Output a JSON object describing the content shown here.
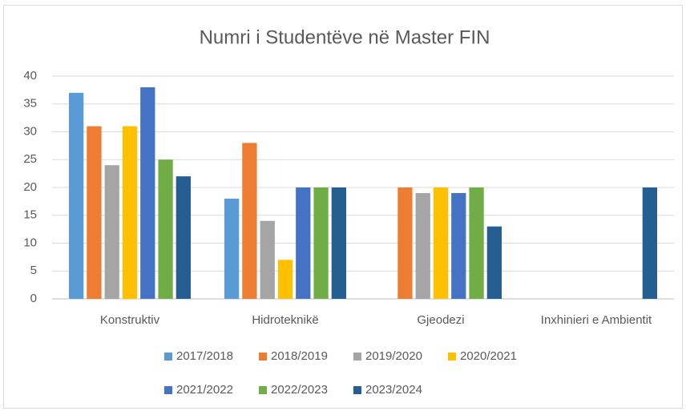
{
  "chart_data": {
    "type": "bar",
    "title": "Numri i Studentëve në Master FIN",
    "categories": [
      "Konstruktiv",
      "Hidroteknikë",
      "Gjeodezi",
      "Inxhinieri e Ambientit"
    ],
    "series": [
      {
        "name": "2017/2018",
        "color": "#5b9bd5",
        "values": [
          37,
          18,
          null,
          null
        ]
      },
      {
        "name": "2018/2019",
        "color": "#ed7d31",
        "values": [
          31,
          28,
          20,
          null
        ]
      },
      {
        "name": "2019/2020",
        "color": "#a5a5a5",
        "values": [
          24,
          14,
          19,
          null
        ]
      },
      {
        "name": "2020/2021",
        "color": "#ffc000",
        "values": [
          31,
          7,
          20,
          null
        ]
      },
      {
        "name": "2021/2022",
        "color": "#4472c4",
        "values": [
          38,
          20,
          19,
          null
        ]
      },
      {
        "name": "2022/2023",
        "color": "#70ad47",
        "values": [
          25,
          20,
          20,
          null
        ]
      },
      {
        "name": "2023/2024",
        "color": "#255e91",
        "values": [
          22,
          20,
          13,
          20
        ]
      }
    ],
    "ylim": [
      0,
      40
    ],
    "yticks": [
      0,
      5,
      10,
      15,
      20,
      25,
      30,
      35,
      40
    ],
    "grid": true,
    "legend": "bottom"
  }
}
